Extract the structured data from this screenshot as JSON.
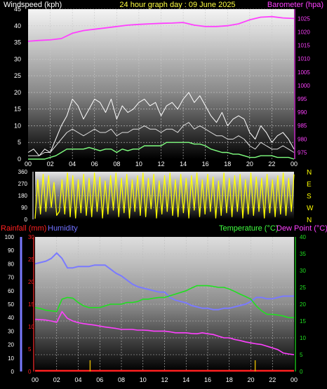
{
  "header": {
    "left": "Windspeed (kph)",
    "center": "24 hour graph day : 09 June 2025",
    "right": "Barometer (hpa)"
  },
  "colors": {
    "wind_label": "#ffffff",
    "title": "#ffff40",
    "baro": "#ff40ff",
    "wind_line": "#e0e0e0",
    "gust_line": "#ffffff",
    "wind_avg": "#80ff80",
    "dir_line": "#ffff00",
    "rain": "#ff2020",
    "rain_axis": "#ff3030",
    "rain_ticks": "#d8b000",
    "humidity": "#7a7aff",
    "temperature": "#20e020",
    "dewpoint": "#ff40ff",
    "temp_label": "#40ff40",
    "dew_label": "#ff40ff",
    "hum_label": "#7070ff",
    "axis_text": "#ffffff"
  },
  "x_axis": {
    "hour_labels": [
      "00",
      "02",
      "04",
      "06",
      "08",
      "10",
      "12",
      "14",
      "16",
      "18",
      "20",
      "22",
      "00"
    ]
  },
  "chart_data": [
    {
      "name": "wind_barometer",
      "type": "line",
      "x_range_hours": [
        0,
        24
      ],
      "y_left": {
        "label": "Windspeed (kph)",
        "ticks": [
          0,
          5,
          10,
          15,
          20,
          25,
          30,
          35,
          40,
          45
        ],
        "ylim": [
          0,
          45
        ]
      },
      "y_right": {
        "label": "Barometer (hpa)",
        "ticks": [
          975,
          980,
          985,
          990,
          995,
          1000,
          1005,
          1010,
          1015,
          1020,
          1025
        ],
        "ylim": [
          972.5,
          1028.5
        ]
      },
      "grid": true,
      "series": [
        {
          "key": "gust",
          "x": [
            0,
            0.5,
            1,
            1.5,
            2,
            2.5,
            3,
            3.5,
            4,
            4.5,
            5,
            5.5,
            6,
            6.5,
            7,
            7.5,
            8,
            8.5,
            9,
            9.5,
            10,
            10.5,
            11,
            11.5,
            12,
            12.5,
            13,
            13.5,
            14,
            14.5,
            15,
            15.5,
            16,
            16.5,
            17,
            17.5,
            18,
            18.5,
            19,
            19.5,
            20,
            20.5,
            21,
            21.5,
            22,
            22.5,
            23,
            23.5,
            24
          ],
          "values": [
            2,
            3,
            1,
            3,
            2,
            6,
            10,
            13,
            18,
            16,
            12,
            15,
            18,
            17,
            14,
            18,
            12,
            16,
            14,
            15,
            17,
            18,
            16,
            17,
            13,
            16,
            17,
            15,
            18,
            20,
            17,
            19,
            16,
            13,
            11,
            14,
            10,
            12,
            13,
            12,
            8,
            6,
            10,
            8,
            5,
            7,
            8,
            6,
            3
          ]
        },
        {
          "key": "wind",
          "x": [
            0,
            0.5,
            1,
            1.5,
            2,
            2.5,
            3,
            3.5,
            4,
            4.5,
            5,
            5.5,
            6,
            6.5,
            7,
            7.5,
            8,
            8.5,
            9,
            9.5,
            10,
            10.5,
            11,
            11.5,
            12,
            12.5,
            13,
            13.5,
            14,
            14.5,
            15,
            15.5,
            16,
            16.5,
            17,
            17.5,
            18,
            18.5,
            19,
            19.5,
            20,
            20.5,
            21,
            21.5,
            22,
            22.5,
            23,
            23.5,
            24
          ],
          "values": [
            1,
            1,
            1,
            2,
            2,
            4,
            6,
            8,
            9,
            8,
            7,
            8,
            9,
            8,
            8,
            9,
            7,
            8,
            8,
            9,
            9,
            10,
            9,
            9,
            8,
            9,
            9,
            8,
            10,
            11,
            9,
            10,
            9,
            8,
            7,
            7,
            6,
            6,
            7,
            6,
            4,
            3,
            5,
            4,
            3,
            3,
            4,
            3,
            2
          ]
        },
        {
          "key": "average",
          "x": [
            0,
            0.5,
            1,
            1.5,
            2,
            2.5,
            3,
            3.5,
            4,
            4.5,
            5,
            5.5,
            6,
            6.5,
            7,
            7.5,
            8,
            8.5,
            9,
            9.5,
            10,
            10.5,
            11,
            11.5,
            12,
            12.5,
            13,
            13.5,
            14,
            14.5,
            15,
            15.5,
            16,
            16.5,
            17,
            17.5,
            18,
            18.5,
            19,
            19.5,
            20,
            20.5,
            21,
            21.5,
            22,
            22.5,
            23,
            23.5,
            24
          ],
          "values": [
            0,
            0,
            0,
            0,
            0.5,
            1,
            2,
            3,
            3,
            3,
            3,
            3.5,
            3,
            2.5,
            3,
            3,
            2,
            3,
            2.5,
            3,
            3,
            4,
            4,
            4,
            4,
            5,
            5,
            5,
            5,
            5,
            4.5,
            4.5,
            4,
            3,
            2.5,
            2,
            2,
            1.5,
            1.5,
            1,
            0.5,
            0.5,
            1,
            1,
            1,
            0.5,
            0.5,
            0.5,
            0
          ]
        },
        {
          "key": "barometer",
          "axis": "right",
          "x": [
            0,
            1,
            2,
            3,
            4,
            5,
            6,
            7,
            8,
            9,
            10,
            11,
            12,
            13,
            14,
            15,
            16,
            17,
            18,
            19,
            20,
            21,
            22,
            23,
            24
          ],
          "values": [
            1016.5,
            1016.8,
            1017,
            1017.5,
            1019.5,
            1020.5,
            1021,
            1021.5,
            1022,
            1022.5,
            1022.8,
            1023,
            1023.2,
            1023.3,
            1023.5,
            1022.5,
            1022,
            1022,
            1022.3,
            1023,
            1024.5,
            1025.5,
            1025.7,
            1025.2,
            1025
          ]
        }
      ]
    },
    {
      "name": "wind_direction",
      "type": "line",
      "x_range_hours": [
        0,
        24
      ],
      "y_left": {
        "ticks": [
          0,
          90,
          180,
          270,
          360
        ],
        "ylim": [
          0,
          360
        ]
      },
      "y_right_labels": [
        "N",
        "W",
        "S",
        "E",
        "N"
      ],
      "series": [
        {
          "key": "direction",
          "x": [
            0,
            0.25,
            0.5,
            0.75,
            1,
            1.25,
            1.5,
            1.75,
            2,
            2.25,
            2.5,
            2.75,
            3,
            3.25,
            3.5,
            3.75,
            4,
            4.25,
            4.5,
            4.75,
            5,
            5.25,
            5.5,
            5.75,
            6,
            6.25,
            6.5,
            6.75,
            7,
            7.25,
            7.5,
            7.75,
            8,
            8.25,
            8.5,
            8.75,
            9,
            9.25,
            9.5,
            9.75,
            10,
            10.25,
            10.5,
            10.75,
            11,
            11.25,
            11.5,
            11.75,
            12,
            12.25,
            12.5,
            12.75,
            13,
            13.25,
            13.5,
            13.75,
            14,
            14.25,
            14.5,
            14.75,
            15,
            15.25,
            15.5,
            15.75,
            16,
            16.25,
            16.5,
            16.75,
            17,
            17.25,
            17.5,
            17.75,
            18,
            18.25,
            18.5,
            18.75,
            19,
            19.25,
            19.5,
            19.75,
            20,
            20.25,
            20.5,
            20.75,
            21,
            21.25,
            21.5,
            21.75,
            22,
            22.25,
            22.5,
            22.75,
            23,
            23.25,
            23.5,
            23.75,
            24
          ],
          "values": [
            5,
            300,
            40,
            340,
            60,
            330,
            90,
            280,
            30,
            60,
            300,
            40,
            350,
            20,
            330,
            10,
            300,
            50,
            340,
            30,
            310,
            20,
            350,
            60,
            320,
            10,
            290,
            40,
            330,
            70,
            350,
            20,
            310,
            50,
            340,
            10,
            300,
            60,
            330,
            30,
            350,
            20,
            310,
            80,
            340,
            10,
            290,
            40,
            330,
            60,
            350,
            30,
            300,
            20,
            340,
            50,
            310,
            10,
            330,
            70,
            350,
            20,
            300,
            40,
            340,
            60,
            320,
            10,
            290,
            30,
            350,
            50,
            310,
            20,
            330,
            60,
            340,
            10,
            300,
            40,
            350,
            30,
            320,
            60,
            310,
            10,
            340,
            50,
            300,
            20,
            330,
            40,
            350,
            30,
            310,
            60,
            340
          ]
        }
      ]
    },
    {
      "name": "rain_humidity_temp_dew",
      "type": "line",
      "x_range_hours": [
        0,
        24
      ],
      "header": {
        "rainfall_label": "Rainfall (mm)",
        "humidity_label": "Humidity",
        "temperature_label": "Temperature (°C)",
        "dewpoint_label": "Dew Point (°C)"
      },
      "humidity_axis": {
        "ticks": [
          0,
          10,
          20,
          30,
          40,
          50,
          60,
          70,
          80,
          90,
          100
        ],
        "ylim": [
          0,
          100
        ]
      },
      "rain_axis": {
        "ticks": [
          0,
          5,
          10,
          15,
          20,
          25,
          30
        ],
        "ylim": [
          0,
          30
        ]
      },
      "temp_axis": {
        "ticks": [
          0,
          5,
          10,
          15,
          20,
          25,
          30,
          35,
          40
        ],
        "ylim": [
          0,
          40
        ]
      },
      "grid": true,
      "series": [
        {
          "key": "humidity",
          "axis": "humidity",
          "x": [
            0,
            0.5,
            1,
            1.5,
            2,
            2.5,
            3,
            3.5,
            4,
            4.5,
            5,
            5.5,
            6,
            6.5,
            7,
            7.5,
            8,
            8.5,
            9,
            9.5,
            10,
            10.5,
            11,
            11.5,
            12,
            12.5,
            13,
            13.5,
            14,
            14.5,
            15,
            15.5,
            16,
            16.5,
            17,
            17.5,
            18,
            18.5,
            19,
            19.5,
            20,
            20.5,
            21,
            21.5,
            22,
            22.5,
            23,
            23.5,
            24
          ],
          "values": [
            80,
            81,
            82,
            84,
            88,
            84,
            77,
            77,
            78,
            78,
            78,
            79,
            79,
            79,
            76,
            73,
            71,
            68,
            65,
            63,
            62,
            61,
            60,
            59,
            59,
            55,
            53,
            52,
            51,
            49,
            48,
            47,
            47,
            46,
            46,
            47,
            47,
            48,
            49,
            50,
            52,
            55,
            55,
            54,
            54,
            55,
            56,
            56,
            56
          ]
        },
        {
          "key": "temperature",
          "axis": "temp",
          "x": [
            0,
            0.5,
            1,
            1.5,
            2,
            2.5,
            3,
            3.5,
            4,
            4.5,
            5,
            5.5,
            6,
            6.5,
            7,
            7.5,
            8,
            8.5,
            9,
            9.5,
            10,
            10.5,
            11,
            11.5,
            12,
            12.5,
            13,
            13.5,
            14,
            14.5,
            15,
            15.5,
            16,
            16.5,
            17,
            17.5,
            18,
            18.5,
            19,
            19.5,
            20,
            20.5,
            21,
            21.5,
            22,
            22.5,
            23,
            23.5,
            24
          ],
          "values": [
            19,
            18.7,
            18.2,
            18,
            17.8,
            21.5,
            22,
            21.8,
            20.5,
            19.5,
            19,
            19,
            19,
            19.5,
            20,
            20,
            20,
            20.5,
            20.5,
            20.8,
            21.5,
            21.5,
            21.8,
            22,
            22,
            22.5,
            23,
            23.5,
            24,
            24.8,
            25.5,
            25.5,
            25.5,
            25.3,
            25,
            25,
            24.5,
            23.8,
            23,
            22.3,
            21.5,
            19.5,
            18,
            17,
            17,
            16.8,
            16.5,
            16,
            16
          ]
        },
        {
          "key": "dewpoint",
          "axis": "temp",
          "x": [
            0,
            0.5,
            1,
            1.5,
            2,
            2.5,
            3,
            3.5,
            4,
            4.5,
            5,
            5.5,
            6,
            6.5,
            7,
            7.5,
            8,
            8.5,
            9,
            9.5,
            10,
            10.5,
            11,
            11.5,
            12,
            12.5,
            13,
            13.5,
            14,
            14.5,
            15,
            15.5,
            16,
            16.5,
            17,
            17.5,
            18,
            18.5,
            19,
            19.5,
            20,
            20.5,
            21,
            21.5,
            22,
            22.5,
            23,
            23.5,
            24
          ],
          "values": [
            15.5,
            15.4,
            15.3,
            15,
            14.6,
            17.8,
            15.8,
            15,
            14.5,
            14.2,
            14,
            13.8,
            13.5,
            13.2,
            13,
            12.8,
            12.5,
            12.5,
            12.5,
            12.3,
            12.3,
            12.2,
            12,
            12,
            12,
            11.8,
            11.5,
            11.5,
            11.5,
            11.3,
            11.2,
            11.5,
            11.2,
            11,
            10.5,
            10,
            10,
            9.5,
            9.2,
            8.8,
            8.5,
            8.2,
            8,
            7.5,
            7,
            6.5,
            5.5,
            5.2,
            5
          ]
        },
        {
          "key": "rainfall",
          "axis": "rain",
          "x": [
            0,
            24
          ],
          "values": [
            0,
            0
          ]
        }
      ],
      "rain_tick_marks_hours": [
        5.1,
        20.4
      ]
    }
  ]
}
